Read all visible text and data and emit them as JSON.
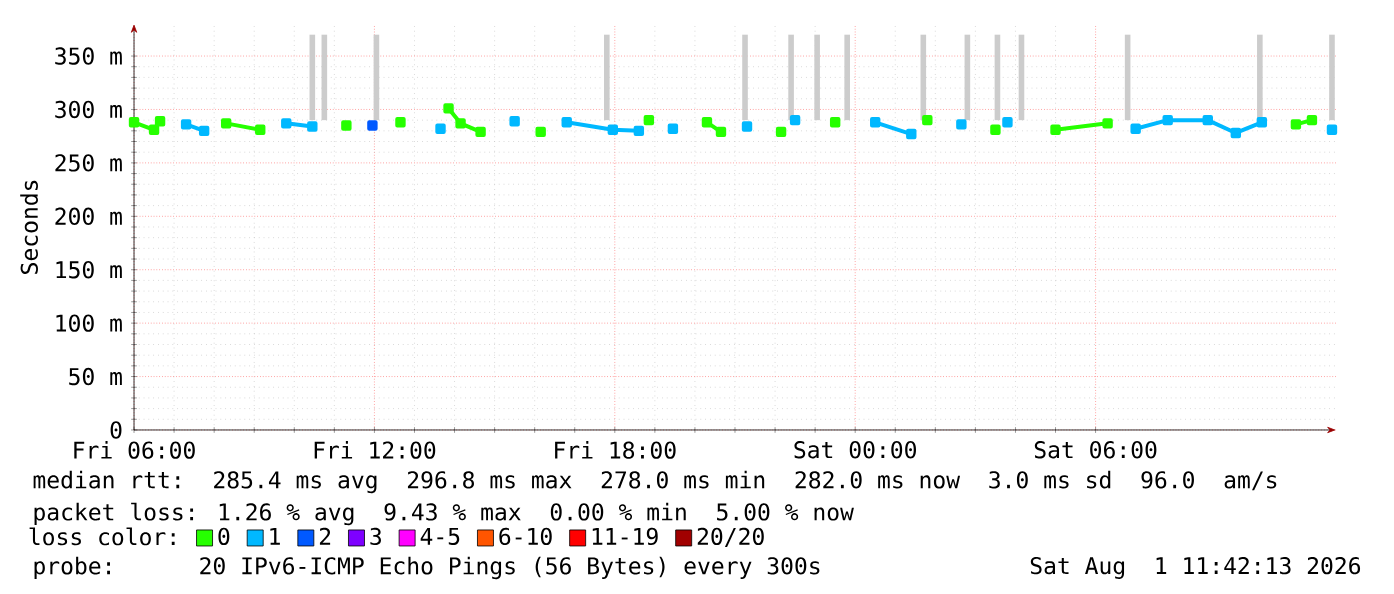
{
  "chart_data": {
    "type": "line",
    "ylabel": "Seconds",
    "xlim": [
      "2026-07-31T06:00",
      "2026-08-01T12:00"
    ],
    "xticks": [
      {
        "value": "2026-07-31T06:00",
        "label": "Fri 06:00"
      },
      {
        "value": "2026-07-31T12:00",
        "label": "Fri 12:00"
      },
      {
        "value": "2026-07-31T18:00",
        "label": "Fri 18:00"
      },
      {
        "value": "2026-08-01T00:00",
        "label": "Sat 00:00"
      },
      {
        "value": "2026-08-01T06:00",
        "label": "Sat 06:00"
      }
    ],
    "ylim": [
      0,
      380
    ],
    "yticks": [
      0,
      {
        "value": 50,
        "label": "50 m"
      },
      {
        "value": 100,
        "label": "100 m"
      },
      {
        "value": 150,
        "label": "150 m"
      },
      {
        "value": 200,
        "label": "200 m"
      },
      {
        "value": 250,
        "label": "250 m"
      },
      {
        "value": 300,
        "label": "300 m"
      },
      {
        "value": 350,
        "label": "350 m"
      }
    ],
    "grid": true,
    "legend": "bottom",
    "legend_title": "loss color:",
    "marker": "square",
    "annotations": [
      "median rtt:  285.4 ms avg  296.8 ms max  278.0 ms min  282.0 ms now  3.0 ms sd  96.0   am/s",
      "packet loss: 1.26 % avg  9.43 % max  0.00 % min  5.00 % now",
      "probe:       20 IPv6-ICMP Echo Pings (56 Bytes) every 300s",
      "Sat Aug  1 11:42:13 2026"
    ],
    "x": [
      "2026-07-31T06:00",
      "2026-07-31T06:30",
      "2026-07-31T06:39",
      "2026-07-31T07:18",
      "2026-07-31T07:45",
      "2026-07-31T08:18",
      "2026-07-31T09:09",
      "2026-07-31T09:48",
      "2026-07-31T10:27",
      "2026-07-31T11:18",
      "2026-07-31T11:57",
      "2026-07-31T12:39",
      "2026-07-31T13:39",
      "2026-07-31T13:51",
      "2026-07-31T14:09",
      "2026-07-31T14:39",
      "2026-07-31T15:30",
      "2026-07-31T16:09",
      "2026-07-31T16:48",
      "2026-07-31T17:57",
      "2026-07-31T18:36",
      "2026-07-31T18:51",
      "2026-07-31T19:27",
      "2026-07-31T20:18",
      "2026-07-31T20:39",
      "2026-07-31T21:18",
      "2026-07-31T22:09",
      "2026-07-31T22:30",
      "2026-07-31T23:30",
      "2026-08-01T00:30",
      "2026-08-01T01:24",
      "2026-08-01T01:48",
      "2026-08-01T02:39",
      "2026-08-01T03:30",
      "2026-08-01T03:48",
      "2026-08-01T05:00",
      "2026-08-01T06:18",
      "2026-08-01T07:00",
      "2026-08-01T07:48",
      "2026-08-01T08:48",
      "2026-08-01T09:30",
      "2026-08-01T10:09",
      "2026-08-01T11:00",
      "2026-08-01T11:24",
      "2026-08-01T11:54"
    ],
    "series": [
      {
        "type": "bar",
        "color": "#cccccc",
        "x": [
          "2026-07-31T10:27",
          "2026-07-31T10:45",
          "2026-07-31T12:03",
          "2026-07-31T17:48",
          "2026-07-31T21:15",
          "2026-07-31T22:24",
          "2026-07-31T23:03",
          "2026-07-31T23:48",
          "2026-08-01T01:42",
          "2026-08-01T02:48",
          "2026-08-01T03:33",
          "2026-08-01T04:09",
          "2026-08-01T06:48",
          "2026-08-01T10:06",
          "2026-08-01T11:54"
        ],
        "base": [
          290,
          290,
          290,
          290,
          290,
          290,
          290,
          290,
          290,
          290,
          290,
          290,
          290,
          290,
          290
        ],
        "values": [
          80,
          80,
          80,
          80,
          80,
          80,
          80,
          80,
          80,
          80,
          80,
          80,
          80,
          80,
          80
        ]
      },
      {
        "name": "0",
        "color": "#26ff00",
        "values": [
          288,
          281,
          289,
          null,
          null,
          287,
          281,
          null,
          null,
          285,
          null,
          288,
          null,
          301,
          287,
          279,
          null,
          279,
          null,
          null,
          null,
          290,
          null,
          288,
          279,
          null,
          279,
          null,
          288,
          null,
          null,
          290,
          null,
          281,
          null,
          281,
          287,
          null,
          null,
          null,
          null,
          null,
          286,
          290,
          null
        ]
      },
      {
        "name": "1",
        "color": "#00b8ff",
        "values": [
          null,
          null,
          null,
          286,
          280,
          null,
          null,
          287,
          284,
          null,
          null,
          null,
          282,
          null,
          null,
          null,
          289,
          null,
          288,
          281,
          280,
          null,
          282,
          null,
          null,
          284,
          null,
          290,
          null,
          288,
          277,
          null,
          286,
          null,
          288,
          null,
          null,
          282,
          290,
          290,
          278,
          288,
          null,
          null,
          281
        ]
      },
      {
        "name": "2",
        "color": "#0059ff",
        "values": [
          null,
          null,
          null,
          null,
          null,
          null,
          null,
          null,
          null,
          null,
          285,
          null,
          null,
          null,
          null,
          null,
          null,
          null,
          null,
          null,
          null,
          null,
          null,
          null,
          null,
          null,
          null,
          null,
          null,
          null,
          null,
          null,
          null,
          null,
          null,
          null,
          null,
          null,
          null,
          null,
          null,
          null,
          null,
          null,
          null
        ]
      },
      {
        "name": "3",
        "color": "#7e00ff",
        "values": [
          null,
          null,
          null,
          null,
          null,
          null,
          null,
          null,
          null,
          null,
          null,
          null,
          null,
          null,
          null,
          null,
          null,
          null,
          null,
          null,
          null,
          null,
          null,
          null,
          null,
          null,
          null,
          null,
          null,
          null,
          null,
          null,
          null,
          null,
          null,
          null,
          null,
          null,
          null,
          null,
          null,
          null,
          null,
          null,
          null
        ]
      },
      {
        "name": "4-5",
        "color": "#ff00ff",
        "values": [
          null,
          null,
          null,
          null,
          null,
          null,
          null,
          null,
          null,
          null,
          null,
          null,
          null,
          null,
          null,
          null,
          null,
          null,
          null,
          null,
          null,
          null,
          null,
          null,
          null,
          null,
          null,
          null,
          null,
          null,
          null,
          null,
          null,
          null,
          null,
          null,
          null,
          null,
          null,
          null,
          null,
          null,
          null,
          null,
          null
        ]
      },
      {
        "name": "6-10",
        "color": "#ff5500",
        "values": [
          null,
          null,
          null,
          null,
          null,
          null,
          null,
          null,
          null,
          null,
          null,
          null,
          null,
          null,
          null,
          null,
          null,
          null,
          null,
          null,
          null,
          null,
          null,
          null,
          null,
          null,
          null,
          null,
          null,
          null,
          null,
          null,
          null,
          null,
          null,
          null,
          null,
          null,
          null,
          null,
          null,
          null,
          null,
          null,
          null
        ]
      },
      {
        "name": "11-19",
        "color": "#ff0000",
        "values": [
          null,
          null,
          null,
          null,
          null,
          null,
          null,
          null,
          null,
          null,
          null,
          null,
          null,
          null,
          null,
          null,
          null,
          null,
          null,
          null,
          null,
          null,
          null,
          null,
          null,
          null,
          null,
          null,
          null,
          null,
          null,
          null,
          null,
          null,
          null,
          null,
          null,
          null,
          null,
          null,
          null,
          null,
          null,
          null,
          null
        ]
      },
      {
        "name": "20/20",
        "color": "#a10000",
        "values": [
          null,
          null,
          null,
          null,
          null,
          null,
          null,
          null,
          null,
          null,
          null,
          null,
          null,
          null,
          null,
          null,
          null,
          null,
          null,
          null,
          null,
          null,
          null,
          null,
          null,
          null,
          null,
          null,
          null,
          null,
          null,
          null,
          null,
          null,
          null,
          null,
          null,
          null,
          null,
          null,
          null,
          null,
          null,
          null,
          null
        ]
      }
    ]
  }
}
